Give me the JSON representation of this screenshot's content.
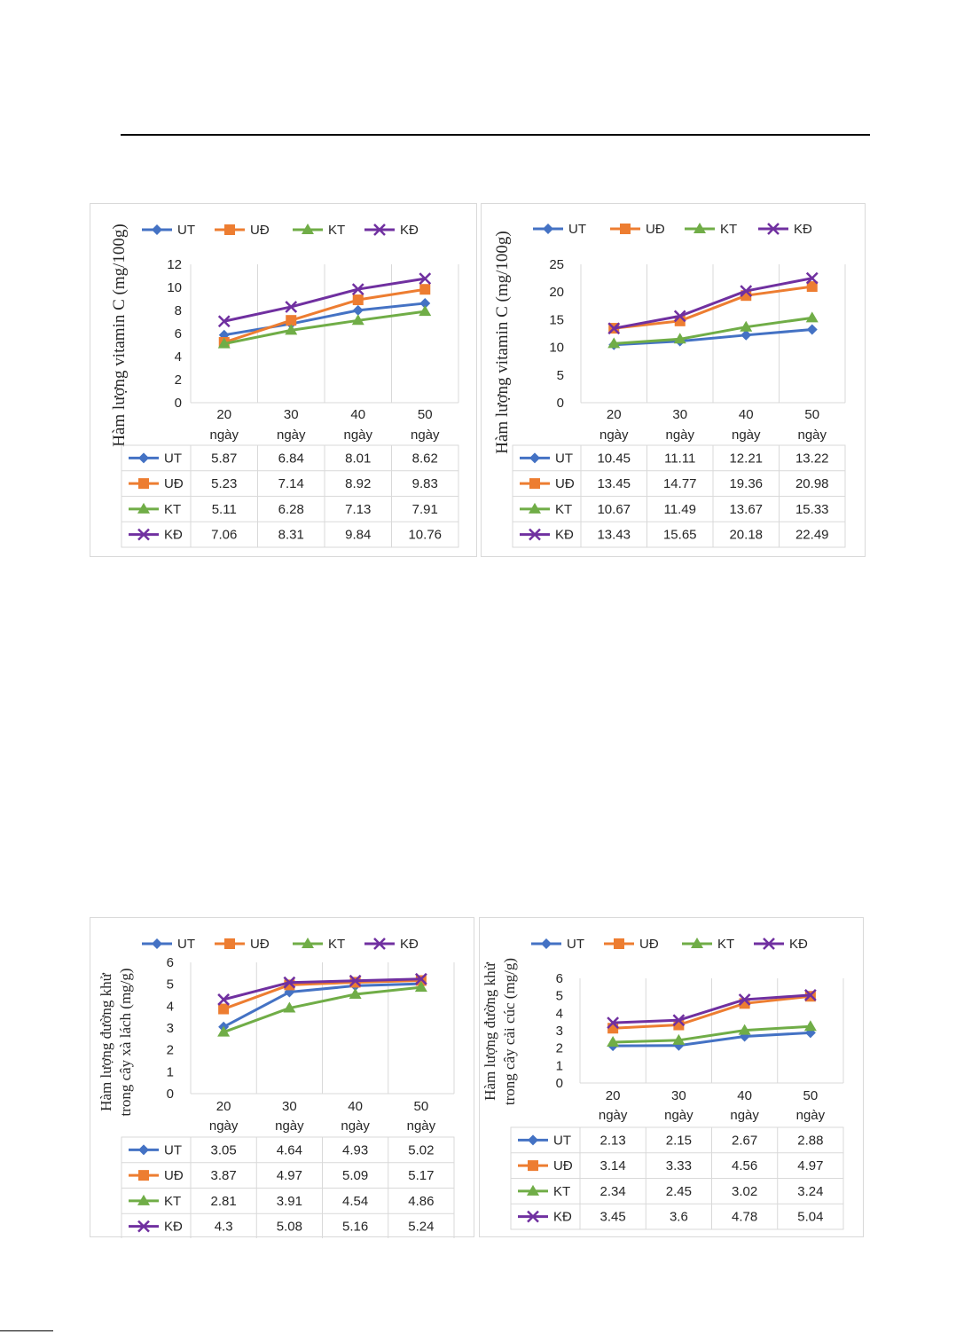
{
  "colors": {
    "UT": "#4472c4",
    "UĐ": "#ed7d31",
    "KT": "#70ad47",
    "KĐ": "#7030a0",
    "grid": "#d9d9d9",
    "text": "#262626"
  },
  "chart_data": [
    {
      "type": "line",
      "ylabel": [
        "Hàm lượng vitamin C (mg/100g)"
      ],
      "categories": [
        [
          "20",
          "ngày"
        ],
        [
          "30",
          "ngày"
        ],
        [
          "40",
          "ngày"
        ],
        [
          "50",
          "ngày"
        ]
      ],
      "ylim": [
        0,
        12
      ],
      "yticks": [
        "0",
        "2",
        "4",
        "6",
        "8",
        "10",
        "12"
      ],
      "legend_position": "top",
      "data_table": true,
      "series": [
        {
          "name": "UT",
          "marker": "diamond",
          "values": [
            5.87,
            6.84,
            8.01,
            8.62
          ],
          "labels": [
            "5.87",
            "6.84",
            "8.01",
            "8.62"
          ]
        },
        {
          "name": "UĐ",
          "marker": "square",
          "values": [
            5.23,
            7.14,
            8.92,
            9.83
          ],
          "labels": [
            "5.23",
            "7.14",
            "8.92",
            "9.83"
          ]
        },
        {
          "name": "KT",
          "marker": "triangle",
          "values": [
            5.11,
            6.28,
            7.13,
            7.91
          ],
          "labels": [
            "5.11",
            "6.28",
            "7.13",
            "7.91"
          ]
        },
        {
          "name": "KĐ",
          "marker": "x",
          "values": [
            7.06,
            8.31,
            9.84,
            10.76
          ],
          "labels": [
            "7.06",
            "8.31",
            "9.84",
            "10.76"
          ]
        }
      ]
    },
    {
      "type": "line",
      "ylabel": [
        "Hàm lượng vitamin C (mg/100g)"
      ],
      "categories": [
        [
          "20",
          "ngày"
        ],
        [
          "30",
          "ngày"
        ],
        [
          "40",
          "ngày"
        ],
        [
          "50",
          "ngày"
        ]
      ],
      "ylim": [
        0,
        25
      ],
      "yticks": [
        "0",
        "5",
        "10",
        "15",
        "20",
        "25"
      ],
      "legend_position": "top",
      "data_table": true,
      "series": [
        {
          "name": "UT",
          "marker": "diamond",
          "values": [
            10.45,
            11.11,
            12.21,
            13.22
          ],
          "labels": [
            "10.45",
            "11.11",
            "12.21",
            "13.22"
          ]
        },
        {
          "name": "UĐ",
          "marker": "square",
          "values": [
            13.45,
            14.77,
            19.36,
            20.98
          ],
          "labels": [
            "13.45",
            "14.77",
            "19.36",
            "20.98"
          ]
        },
        {
          "name": "KT",
          "marker": "triangle",
          "values": [
            10.67,
            11.49,
            13.67,
            15.33
          ],
          "labels": [
            "10.67",
            "11.49",
            "13.67",
            "15.33"
          ]
        },
        {
          "name": "KĐ",
          "marker": "x",
          "values": [
            13.43,
            15.65,
            20.18,
            22.49
          ],
          "labels": [
            "13.43",
            "15.65",
            "20.18",
            "22.49"
          ]
        }
      ]
    },
    {
      "type": "line",
      "ylabel": [
        "Hàm lượng đường khử",
        "trong cây xà lách (mg/g)"
      ],
      "categories": [
        [
          "20",
          "ngày"
        ],
        [
          "30",
          "ngày"
        ],
        [
          "40",
          "ngày"
        ],
        [
          "50",
          "ngày"
        ]
      ],
      "ylim": [
        0,
        6
      ],
      "yticks": [
        "0",
        "1",
        "2",
        "3",
        "4",
        "5",
        "6"
      ],
      "legend_position": "top",
      "data_table": true,
      "series": [
        {
          "name": "UT",
          "marker": "diamond",
          "values": [
            3.05,
            4.64,
            4.93,
            5.02
          ],
          "labels": [
            "3.05",
            "4.64",
            "4.93",
            "5.02"
          ]
        },
        {
          "name": "UĐ",
          "marker": "square",
          "values": [
            3.87,
            4.97,
            5.09,
            5.17
          ],
          "labels": [
            "3.87",
            "4.97",
            "5.09",
            "5.17"
          ]
        },
        {
          "name": "KT",
          "marker": "triangle",
          "values": [
            2.81,
            3.91,
            4.54,
            4.86
          ],
          "labels": [
            "2.81",
            "3.91",
            "4.54",
            "4.86"
          ]
        },
        {
          "name": "KĐ",
          "marker": "x",
          "values": [
            4.3,
            5.08,
            5.16,
            5.24
          ],
          "labels": [
            "4.3",
            "5.08",
            "5.16",
            "5.24"
          ]
        }
      ]
    },
    {
      "type": "line",
      "ylabel": [
        "Hàm lượng đường khử",
        "trong cây cải cúc (mg/g)"
      ],
      "categories": [
        [
          "20",
          "ngày"
        ],
        [
          "30",
          "ngày"
        ],
        [
          "40",
          "ngày"
        ],
        [
          "50",
          "ngày"
        ]
      ],
      "ylim": [
        0,
        6
      ],
      "yticks": [
        "0",
        "1",
        "2",
        "3",
        "4",
        "5",
        "6"
      ],
      "legend_position": "top",
      "data_table": true,
      "series": [
        {
          "name": "UT",
          "marker": "diamond",
          "values": [
            2.13,
            2.15,
            2.67,
            2.88
          ],
          "labels": [
            "2.13",
            "2.15",
            "2.67",
            "2.88"
          ]
        },
        {
          "name": "UĐ",
          "marker": "square",
          "values": [
            3.14,
            3.33,
            4.56,
            4.97
          ],
          "labels": [
            "3.14",
            "3.33",
            "4.56",
            "4.97"
          ]
        },
        {
          "name": "KT",
          "marker": "triangle",
          "values": [
            2.34,
            2.45,
            3.02,
            3.24
          ],
          "labels": [
            "2.34",
            "2.45",
            "3.02",
            "3.24"
          ]
        },
        {
          "name": "KĐ",
          "marker": "x",
          "values": [
            3.45,
            3.6,
            4.78,
            5.04
          ],
          "labels": [
            "3.45",
            "3.6",
            "4.78",
            "5.04"
          ]
        }
      ]
    }
  ]
}
